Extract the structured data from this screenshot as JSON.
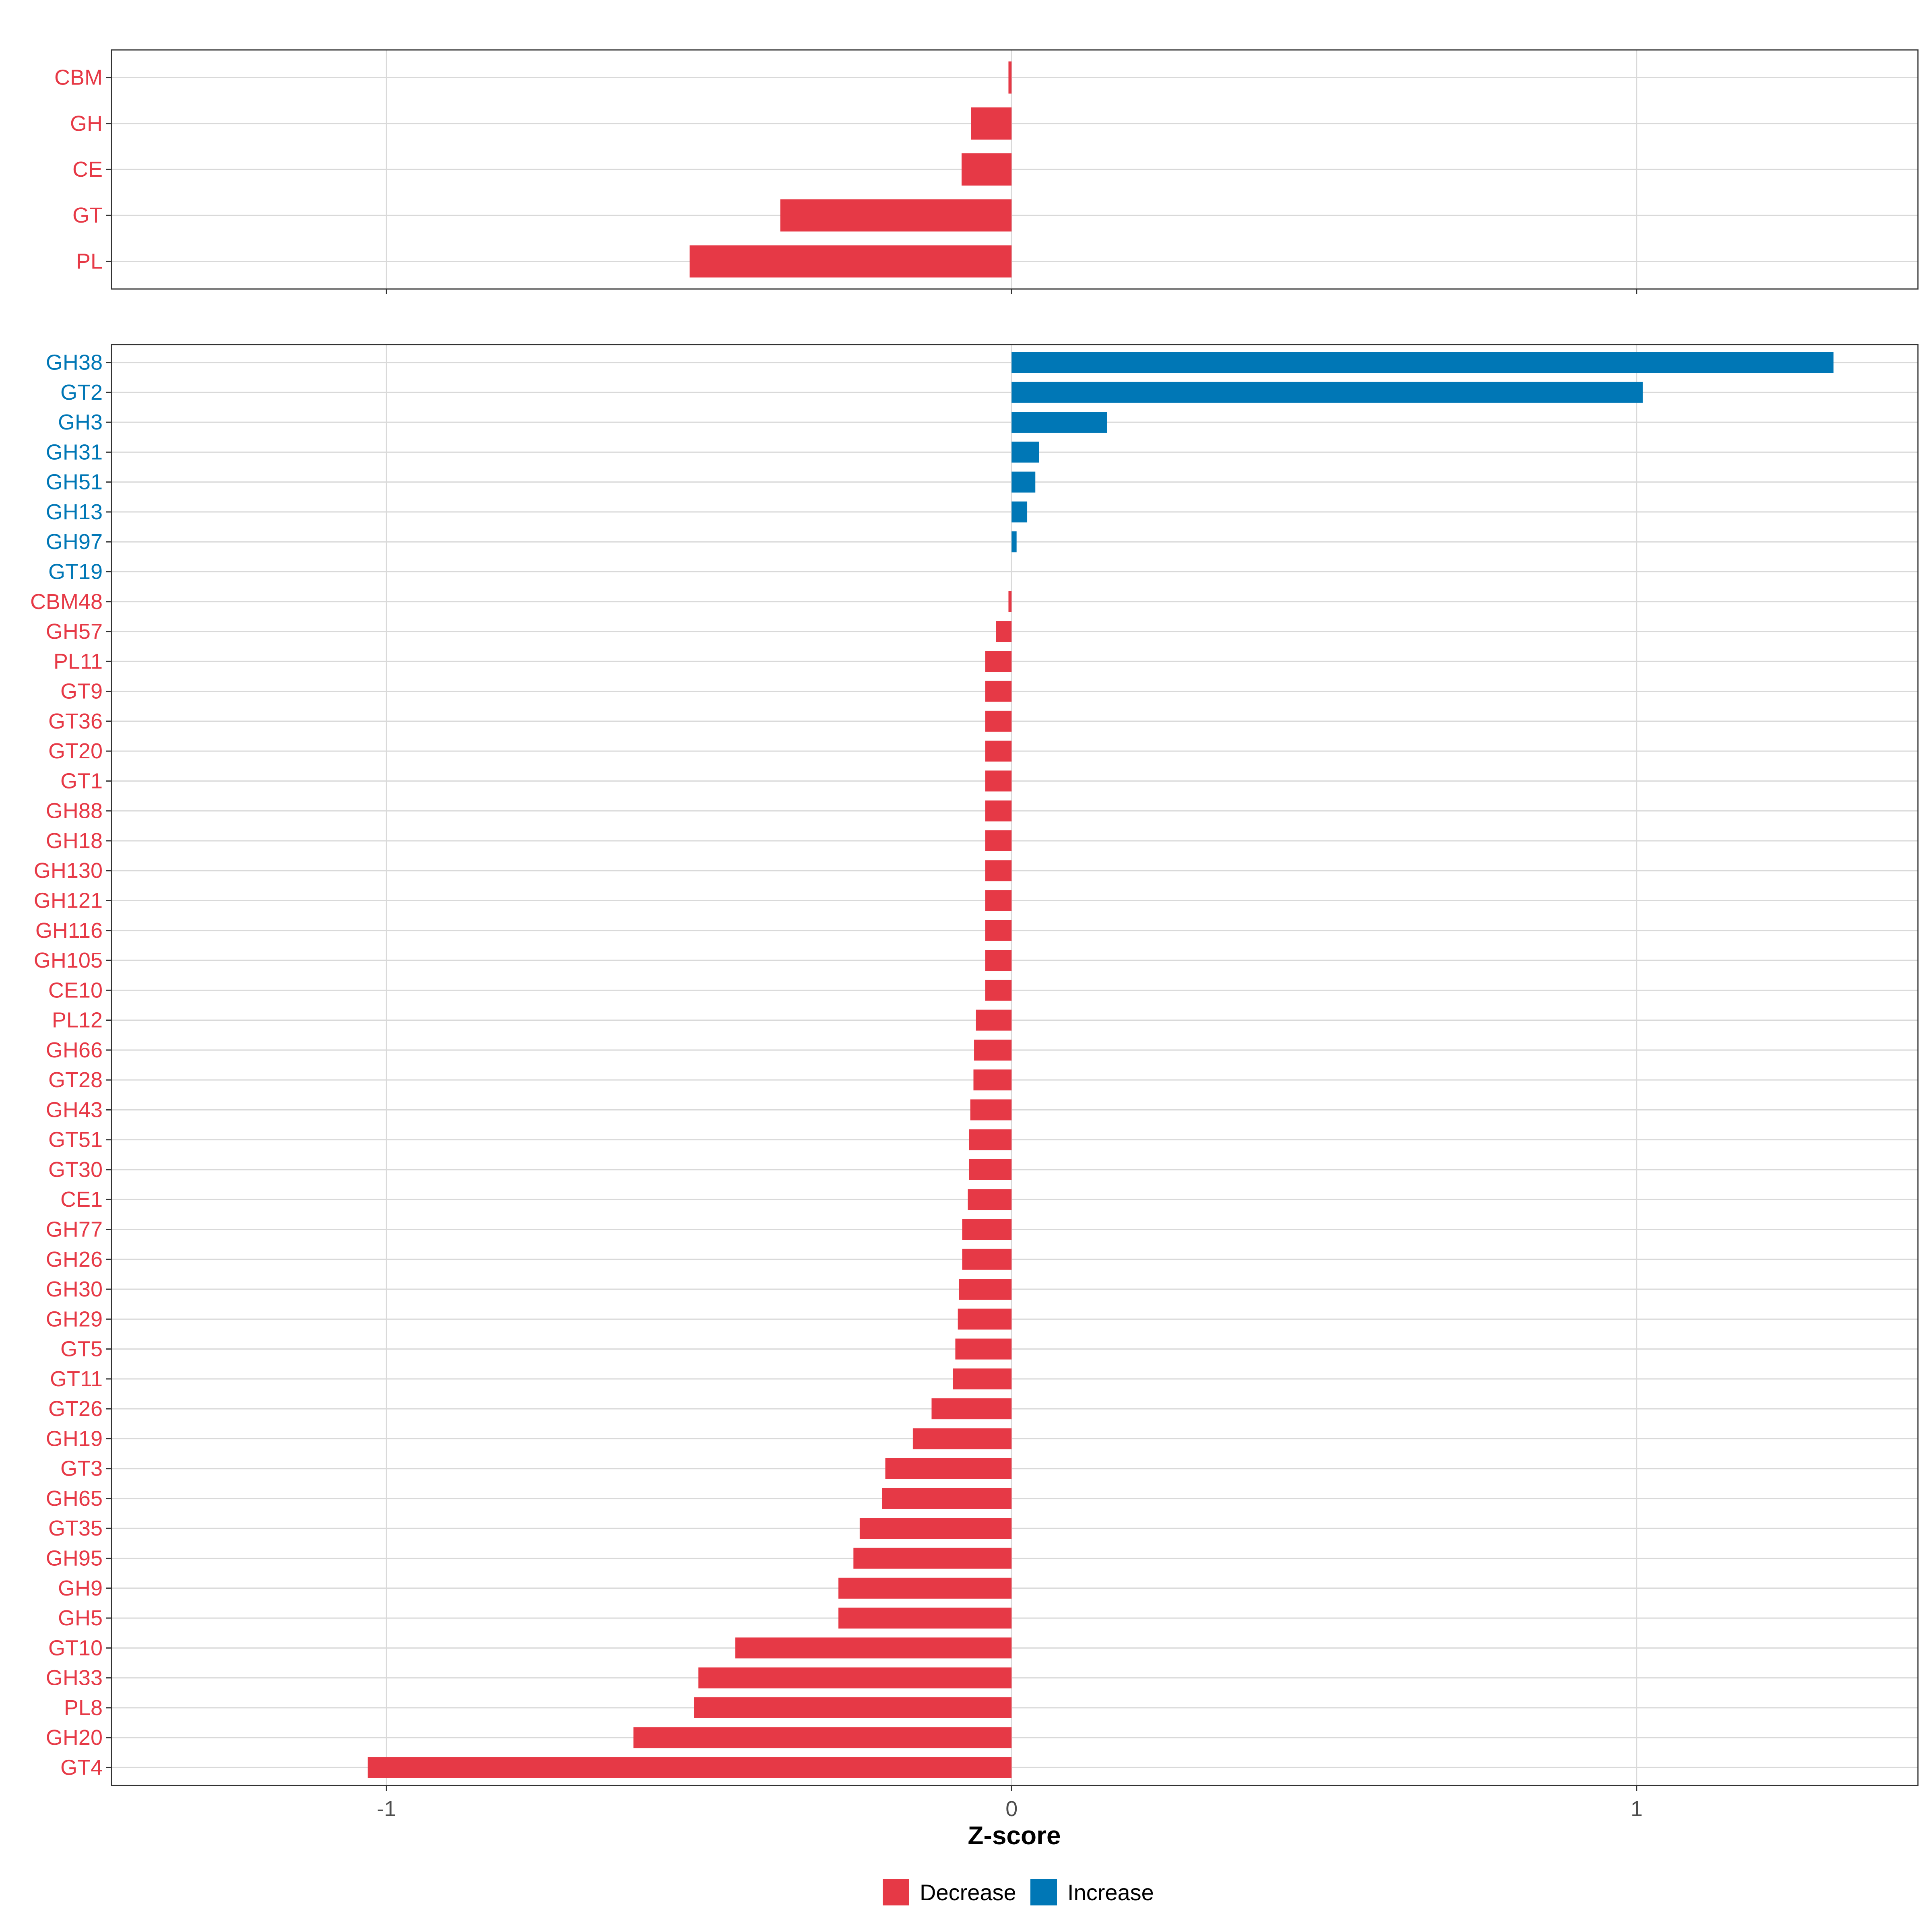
{
  "chart_data": {
    "type": "bar",
    "orientation": "horizontal",
    "xlabel": "Z-score",
    "xlim": [
      -1.44,
      1.45
    ],
    "x_ticks": [
      {
        "value": -1,
        "label": "-1"
      },
      {
        "value": 0,
        "label": "0"
      },
      {
        "value": 1,
        "label": "1"
      }
    ],
    "colors": {
      "Decrease": "#E63946",
      "Increase": "#0077B6"
    },
    "legend": [
      {
        "key": "Decrease",
        "label": "Decrease"
      },
      {
        "key": "Increase",
        "label": "Increase"
      }
    ],
    "legend_position": "bottom",
    "panels": [
      {
        "name": "class",
        "bars": [
          {
            "label": "CBM",
            "value": -0.005
          },
          {
            "label": "GH",
            "value": -0.065
          },
          {
            "label": "CE",
            "value": -0.08
          },
          {
            "label": "GT",
            "value": -0.37
          },
          {
            "label": "PL",
            "value": -0.515
          }
        ]
      },
      {
        "name": "family",
        "bars": [
          {
            "label": "GH38",
            "value": 1.315
          },
          {
            "label": "GT2",
            "value": 1.01
          },
          {
            "label": "GH3",
            "value": 0.153
          },
          {
            "label": "GH31",
            "value": 0.044
          },
          {
            "label": "GH51",
            "value": 0.038
          },
          {
            "label": "GH13",
            "value": 0.025
          },
          {
            "label": "GH97",
            "value": 0.008
          },
          {
            "label": "GT19",
            "value": 0
          },
          {
            "label": "CBM48",
            "value": -0.005
          },
          {
            "label": "GH57",
            "value": -0.025
          },
          {
            "label": "PL11",
            "value": -0.042
          },
          {
            "label": "GT9",
            "value": -0.042
          },
          {
            "label": "GT36",
            "value": -0.042
          },
          {
            "label": "GT20",
            "value": -0.042
          },
          {
            "label": "GT1",
            "value": -0.042
          },
          {
            "label": "GH88",
            "value": -0.042
          },
          {
            "label": "GH18",
            "value": -0.042
          },
          {
            "label": "GH130",
            "value": -0.042
          },
          {
            "label": "GH121",
            "value": -0.042
          },
          {
            "label": "GH116",
            "value": -0.042
          },
          {
            "label": "GH105",
            "value": -0.042
          },
          {
            "label": "CE10",
            "value": -0.042
          },
          {
            "label": "PL12",
            "value": -0.057
          },
          {
            "label": "GH66",
            "value": -0.06
          },
          {
            "label": "GT28",
            "value": -0.061
          },
          {
            "label": "GH43",
            "value": -0.066
          },
          {
            "label": "GT51",
            "value": -0.068
          },
          {
            "label": "GT30",
            "value": -0.068
          },
          {
            "label": "CE1",
            "value": -0.07
          },
          {
            "label": "GH77",
            "value": -0.079
          },
          {
            "label": "GH26",
            "value": -0.079
          },
          {
            "label": "GH30",
            "value": -0.084
          },
          {
            "label": "GH29",
            "value": -0.086
          },
          {
            "label": "GT5",
            "value": -0.09
          },
          {
            "label": "GT11",
            "value": -0.094
          },
          {
            "label": "GT26",
            "value": -0.128
          },
          {
            "label": "GH19",
            "value": -0.158
          },
          {
            "label": "GT3",
            "value": -0.202
          },
          {
            "label": "GH65",
            "value": -0.207
          },
          {
            "label": "GT35",
            "value": -0.243
          },
          {
            "label": "GH95",
            "value": -0.253
          },
          {
            "label": "GH9",
            "value": -0.277
          },
          {
            "label": "GH5",
            "value": -0.277
          },
          {
            "label": "GT10",
            "value": -0.442
          },
          {
            "label": "GH33",
            "value": -0.501
          },
          {
            "label": "PL8",
            "value": -0.508
          },
          {
            "label": "GH20",
            "value": -0.605
          },
          {
            "label": "GT4",
            "value": -1.03
          }
        ]
      }
    ]
  }
}
